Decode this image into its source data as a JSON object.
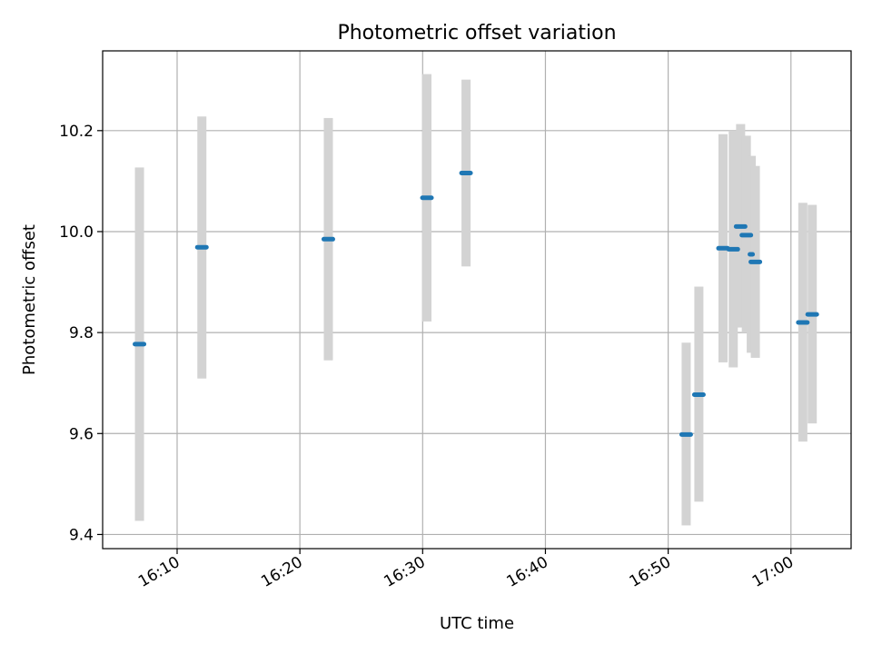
{
  "chart_data": {
    "type": "scatter",
    "title": "Photometric offset variation",
    "xlabel": "UTC time",
    "ylabel": "Photometric offset",
    "x_ticks": [
      "16:10",
      "16:20",
      "16:30",
      "16:40",
      "16:50",
      "17:00"
    ],
    "y_ticks": [
      "9.4",
      "9.6",
      "9.8",
      "10.0",
      "10.2"
    ],
    "xlim": [
      "16:03:56",
      "17:04:54"
    ],
    "ylim": [
      9.372,
      10.358
    ],
    "grid": true,
    "colors": {
      "point": "#1f77b4",
      "error_bar": "#d3d3d3",
      "grid": "#b0b0b0",
      "axes": "#000000"
    },
    "series": [
      {
        "points": [
          {
            "x": "16:06:56",
            "y": 9.777,
            "err": 0.35,
            "y_err_range": [
              9.427,
              10.127
            ],
            "span": 1
          },
          {
            "x": "16:12:01",
            "y": 9.969,
            "err": 0.26,
            "y_err_range": [
              9.709,
              10.228
            ],
            "span": 1
          },
          {
            "x": "16:22:19",
            "y": 9.985,
            "err": 0.24,
            "y_err_range": [
              9.745,
              10.225
            ],
            "span": 1
          },
          {
            "x": "16:30:21",
            "y": 10.067,
            "err": 0.245,
            "y_err_range": [
              9.822,
              10.312
            ],
            "span": 1
          },
          {
            "x": "16:33:32",
            "y": 10.116,
            "err": 0.185,
            "y_err_range": [
              9.931,
              10.301
            ],
            "span": 1
          },
          {
            "x": "16:51:28",
            "y": 9.598,
            "err": 0.18,
            "y_err_range": [
              9.418,
              9.78
            ],
            "span": 1
          },
          {
            "x": "16:52:30",
            "y": 9.677,
            "err": 0.21,
            "y_err_range": [
              9.465,
              9.891
            ],
            "span": 1
          },
          {
            "x": "16:54:28",
            "y": 9.967,
            "err": 0.226,
            "y_err_range": [
              9.741,
              10.193
            ],
            "span": 1
          },
          {
            "x": "16:55:18",
            "y": 9.965,
            "err": 0.235,
            "y_err_range": [
              9.731,
              10.2
            ],
            "span": 1
          },
          {
            "x": "16:55:54",
            "y": 10.01,
            "err": 0.2,
            "y_err_range": [
              9.81,
              10.213
            ],
            "span": 1
          },
          {
            "x": "16:56:22",
            "y": 9.993,
            "err": 0.193,
            "y_err_range": [
              9.8,
              10.19
            ],
            "span": 1
          },
          {
            "x": "16:56:46",
            "y": 9.955,
            "err": 0.196,
            "y_err_range": [
              9.76,
              10.15
            ],
            "span": 0.3
          },
          {
            "x": "16:57:06",
            "y": 9.94,
            "err": 0.19,
            "y_err_range": [
              9.75,
              10.13
            ],
            "span": 1
          },
          {
            "x": "17:00:58",
            "y": 9.82,
            "err": 0.236,
            "y_err_range": [
              9.584,
              10.057
            ],
            "span": 1
          },
          {
            "x": "17:01:44",
            "y": 9.836,
            "err": 0.216,
            "y_err_range": [
              9.62,
              10.053
            ],
            "span": 1
          }
        ]
      }
    ]
  }
}
